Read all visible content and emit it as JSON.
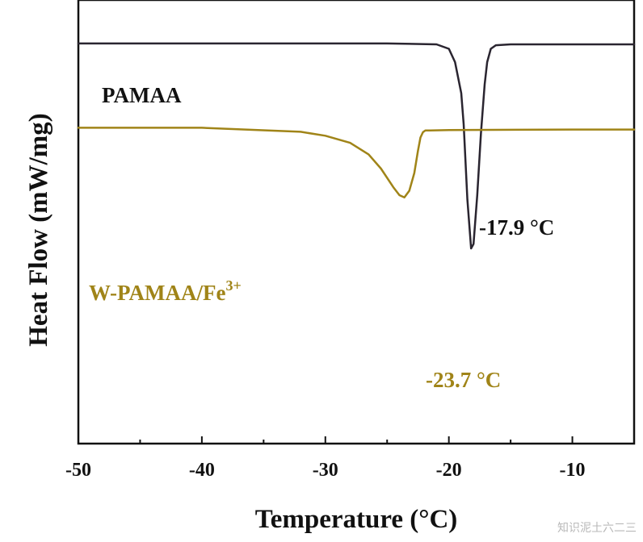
{
  "chart_data": {
    "type": "line",
    "title": "",
    "xlabel": "Temperature (°C)",
    "ylabel": "Heat Flow (mW/mg)",
    "xlim": [
      -50,
      -5
    ],
    "ylim": [
      0,
      1
    ],
    "xticks": [
      -50,
      -40,
      -30,
      -20,
      -10
    ],
    "grid": false,
    "legend": "none",
    "series": [
      {
        "name": "PAMAA",
        "color": "#2a2530",
        "peak_label": "-17.9 °C",
        "x": [
          -50,
          -25,
          -21,
          -20,
          -19.5,
          -19,
          -18.8,
          -18.5,
          -18.2,
          -18,
          -17.7,
          -17.4,
          -17.1,
          -16.9,
          -16.6,
          -16.2,
          -15,
          -10,
          -5
        ],
        "y": [
          0.902,
          0.902,
          0.9,
          0.89,
          0.86,
          0.79,
          0.72,
          0.55,
          0.44,
          0.45,
          0.56,
          0.7,
          0.81,
          0.86,
          0.89,
          0.898,
          0.9,
          0.9,
          0.9
        ]
      },
      {
        "name": "W-PAMAA/Fe3+",
        "color": "#a08418",
        "peak_label": "-23.7 °C",
        "x": [
          -50,
          -40,
          -32,
          -30,
          -28,
          -26.5,
          -25.5,
          -24.5,
          -24,
          -23.6,
          -23.2,
          -22.8,
          -22.5,
          -22.3,
          -22.1,
          -21.9,
          -21.7,
          -21.5,
          -20,
          -10,
          -5
        ],
        "y": [
          0.712,
          0.712,
          0.703,
          0.694,
          0.678,
          0.652,
          0.62,
          0.578,
          0.56,
          0.555,
          0.57,
          0.61,
          0.66,
          0.69,
          0.702,
          0.706,
          0.706,
          0.706,
          0.707,
          0.708,
          0.708
        ]
      }
    ]
  },
  "series_label_2_base": "W-PAMAA/Fe",
  "series_label_2_sup": "3+",
  "watermark": "知识泥土六二三"
}
